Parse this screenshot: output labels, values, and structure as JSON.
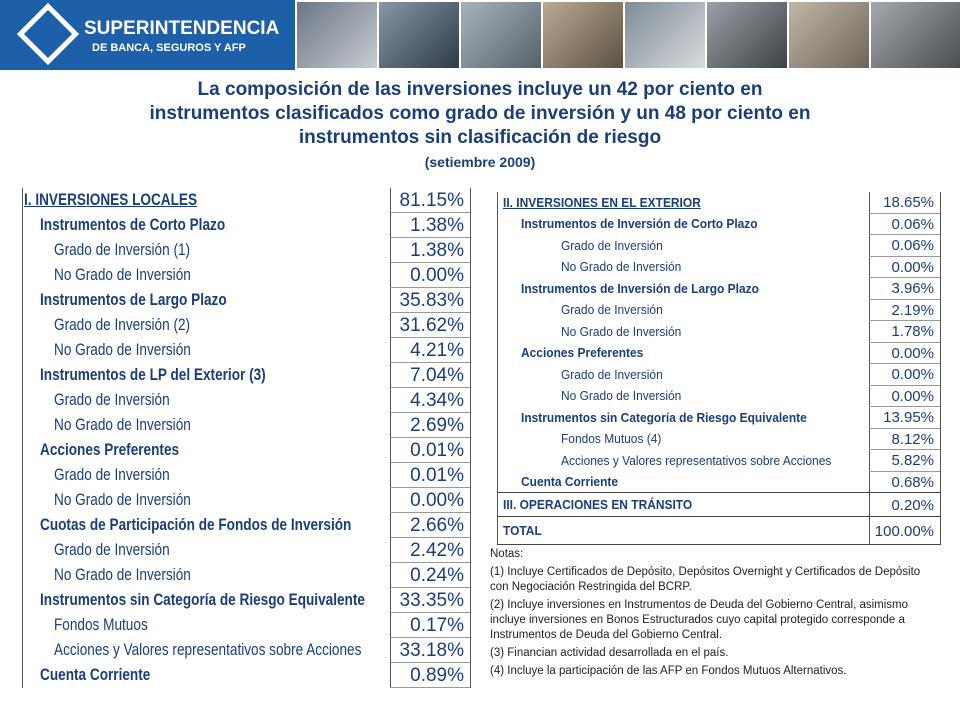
{
  "header": {
    "logo_title": "SUPERINTENDENCIA",
    "logo_subtitle": "DE BANCA, SEGUROS Y AFP"
  },
  "title": [
    "La composición de las inversiones incluye un 42 por ciento en",
    "instrumentos clasificados como grado de inversión y un 48 por ciento en",
    "instrumentos sin clasificación de riesgo"
  ],
  "subtitle": "(setiembre 2009)",
  "local_table": {
    "rows": [
      {
        "label": "I. INVERSIONES LOCALES",
        "value": "81.15%",
        "level": 0
      },
      {
        "label": "Instrumentos de Corto Plazo",
        "value": "1.38%",
        "level": 1
      },
      {
        "label": "Grado de Inversión (1)",
        "value": "1.38%",
        "level": 2
      },
      {
        "label": "No Grado de Inversión",
        "value": "0.00%",
        "level": 2
      },
      {
        "label": "Instrumentos de Largo Plazo",
        "value": "35.83%",
        "level": 1
      },
      {
        "label": "Grado de Inversión (2)",
        "value": "31.62%",
        "level": 2
      },
      {
        "label": "No Grado de Inversión",
        "value": "4.21%",
        "level": 2
      },
      {
        "label": "Instrumentos de LP del Exterior (3)",
        "value": "7.04%",
        "level": 1
      },
      {
        "label": "Grado de Inversión",
        "value": "4.34%",
        "level": 2
      },
      {
        "label": "No Grado de Inversión",
        "value": "2.69%",
        "level": 2
      },
      {
        "label": "Acciones Preferentes",
        "value": "0.01%",
        "level": 1
      },
      {
        "label": "Grado de Inversión",
        "value": "0.01%",
        "level": 2
      },
      {
        "label": "No Grado de Inversión",
        "value": "0.00%",
        "level": 2
      },
      {
        "label": "Cuotas de Participación de Fondos de Inversión",
        "value": "2.66%",
        "level": 1
      },
      {
        "label": "Grado de Inversión",
        "value": "2.42%",
        "level": 2
      },
      {
        "label": "No Grado de Inversión",
        "value": "0.24%",
        "level": 2
      },
      {
        "label": "Instrumentos sin Categoría de Riesgo Equivalente",
        "value": "33.35%",
        "level": 1
      },
      {
        "label": "Fondos Mutuos",
        "value": "0.17%",
        "level": 2
      },
      {
        "label": "Acciones y Valores representativos sobre Acciones",
        "value": "33.18%",
        "level": 2
      },
      {
        "label": "Cuenta Corriente",
        "value": "0.89%",
        "level": 1
      }
    ]
  },
  "foreign_table": {
    "rows": [
      {
        "label": "II. INVERSIONES EN EL EXTERIOR",
        "value": "18.65%",
        "level": 0
      },
      {
        "label": "Instrumentos de Inversión de Corto Plazo",
        "value": "0.06%",
        "level": 1
      },
      {
        "label": "Grado de Inversión",
        "value": "0.06%",
        "level": 2
      },
      {
        "label": "No Grado de Inversión",
        "value": "0.00%",
        "level": 2
      },
      {
        "label": "Instrumentos de Inversión de Largo Plazo",
        "value": "3.96%",
        "level": 1
      },
      {
        "label": "Grado de Inversión",
        "value": "2.19%",
        "level": 2
      },
      {
        "label": "No Grado de Inversión",
        "value": "1.78%",
        "level": 2
      },
      {
        "label": "Acciones Preferentes",
        "value": "0.00%",
        "level": 1
      },
      {
        "label": "Grado de Inversión",
        "value": "0.00%",
        "level": 2
      },
      {
        "label": "No Grado de Inversión",
        "value": "0.00%",
        "level": 2
      },
      {
        "label": "Instrumentos sin Categoría de Riesgo Equivalente",
        "value": "13.95%",
        "level": 1
      },
      {
        "label": "Fondos Mutuos (4)",
        "value": "8.12%",
        "level": 2
      },
      {
        "label": "Acciones y Valores representativos sobre Acciones",
        "value": "5.82%",
        "level": 2
      },
      {
        "label": "Cuenta Corriente",
        "value": "0.68%",
        "level": 1
      },
      {
        "label": "III. OPERACIONES EN TRÁNSITO",
        "value": "0.20%",
        "level": 0
      },
      {
        "label": "TOTAL",
        "value": "100.00%",
        "level": 0
      }
    ]
  },
  "notes": {
    "heading": "Notas:",
    "items": [
      "(1) Incluye Certificados de Depósito, Depósitos Overnight y Certificados de Depósito con Negociación Restringida del BCRP.",
      "(2) Incluye inversiones en Instrumentos de Deuda del Gobierno Central, asimismo incluye inversiones en Bonos Estructurados cuyo capital protegido corresponde a Instrumentos de Deuda del Gobierno Central.",
      "(3) Financian actividad desarrollada en el país.",
      "(4) Incluye la participación de las AFP en Fondos Mutuos Alternativos."
    ]
  }
}
